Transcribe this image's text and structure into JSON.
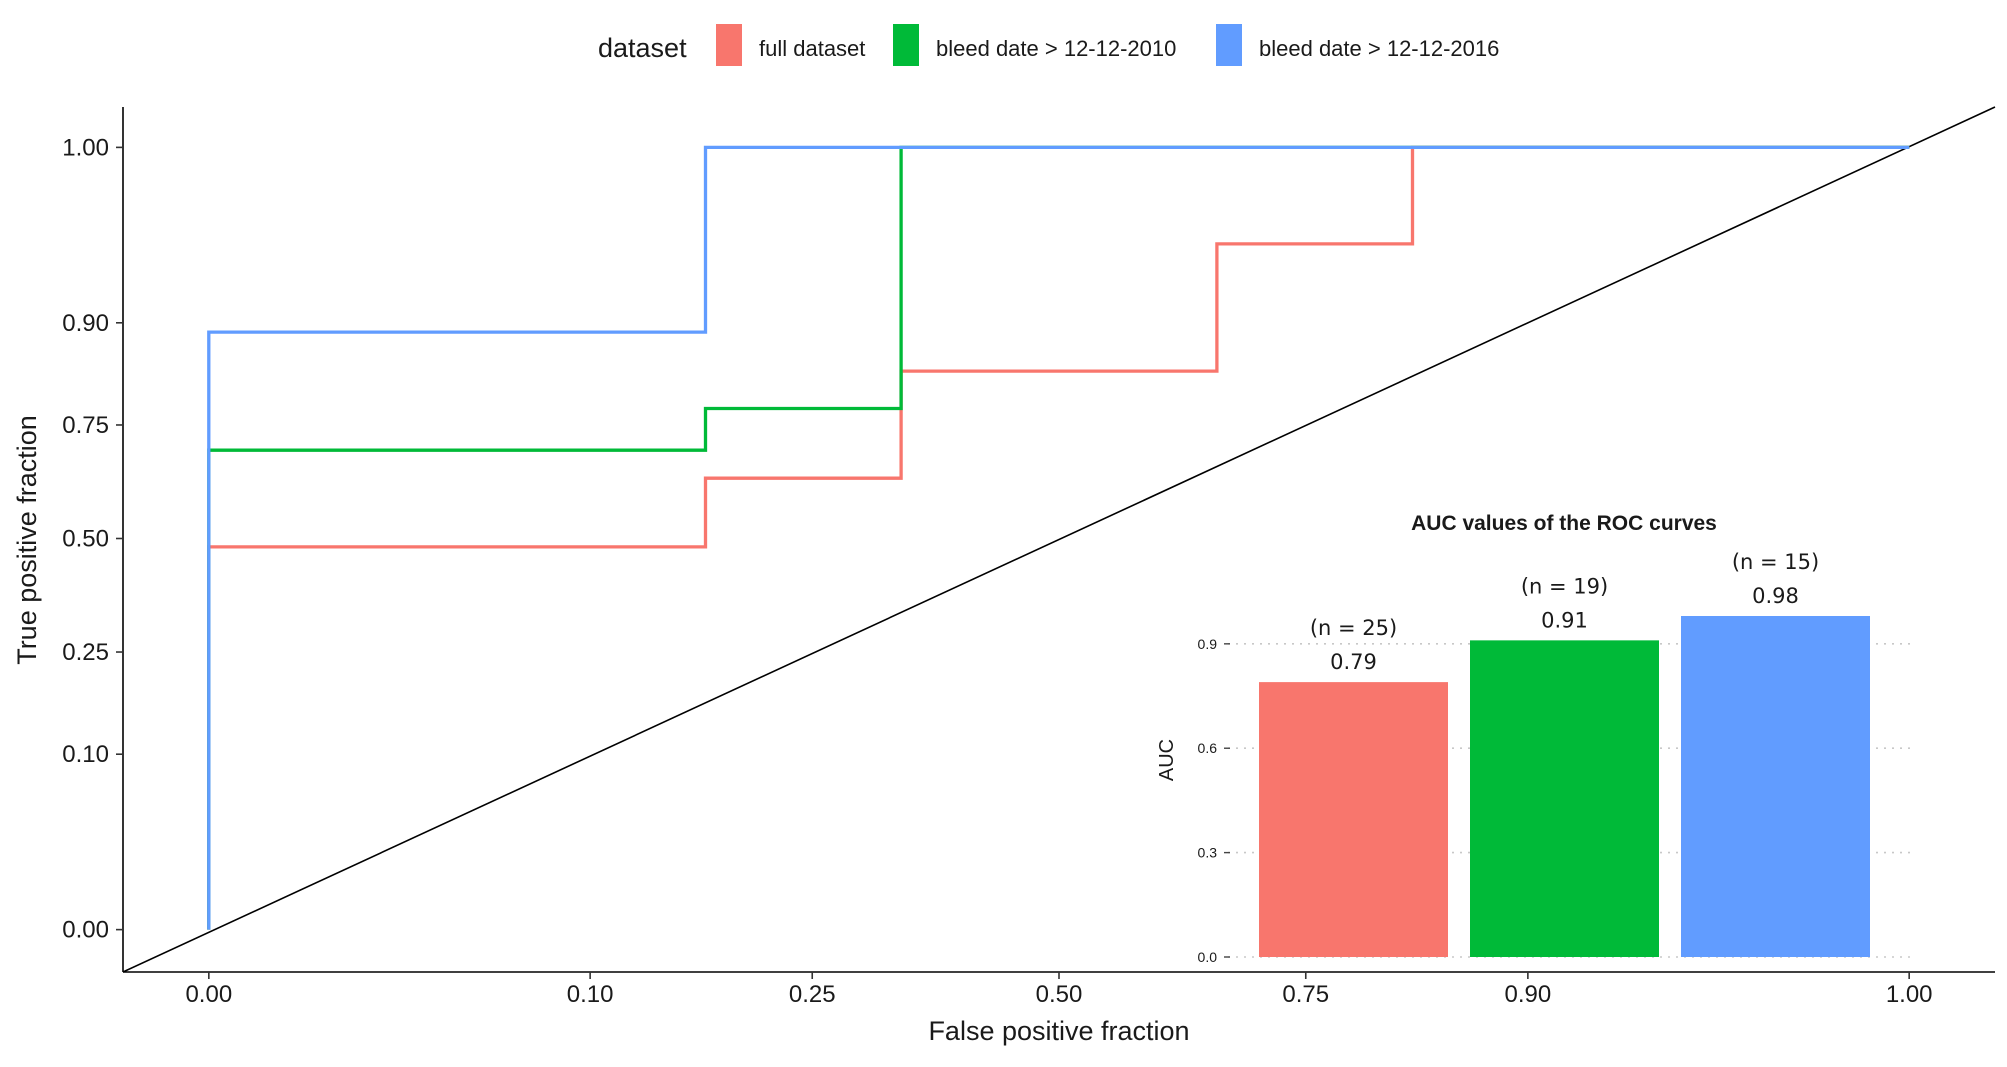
{
  "legend": {
    "title": "dataset",
    "items": [
      {
        "label": "full dataset",
        "color": "#F8766D"
      },
      {
        "label": "bleed date > 12-12-2010",
        "color": "#00BA38"
      },
      {
        "label": "bleed date > 12-12-2016",
        "color": "#619CFF"
      }
    ]
  },
  "chart_data": [
    {
      "type": "line",
      "xlabel": "False positive fraction",
      "ylabel": "True positive fraction",
      "xlim": [
        0,
        1
      ],
      "ylim": [
        0,
        1
      ],
      "x_ticks": [
        0.0,
        0.1,
        0.25,
        0.5,
        0.75,
        0.9,
        1.0
      ],
      "x_tick_labels": [
        "0.00",
        "0.10",
        "0.25",
        "0.50",
        "0.75",
        "0.90",
        "1.00"
      ],
      "y_ticks": [
        0.0,
        0.1,
        0.25,
        0.5,
        0.75,
        0.9,
        1.0
      ],
      "y_tick_labels": [
        "0.00",
        "0.10",
        "0.25",
        "0.50",
        "0.75",
        "0.90",
        "1.00"
      ],
      "axis_transform": "probit",
      "grid": false,
      "legend_position": "top",
      "reference_line": "diagonal",
      "series": [
        {
          "name": "full dataset",
          "color": "#F8766D",
          "points": [
            [
              0,
              0
            ],
            [
              0,
              0.48
            ],
            [
              0.167,
              0.48
            ],
            [
              0.167,
              0.64
            ],
            [
              0.333,
              0.64
            ],
            [
              0.333,
              0.84
            ],
            [
              0.667,
              0.84
            ],
            [
              0.667,
              0.96
            ],
            [
              0.833,
              0.96
            ],
            [
              0.833,
              1.0
            ],
            [
              1.0,
              1.0
            ]
          ]
        },
        {
          "name": "bleed date > 12-12-2010",
          "color": "#00BA38",
          "points": [
            [
              0,
              0
            ],
            [
              0,
              0.7
            ],
            [
              0.167,
              0.7
            ],
            [
              0.167,
              0.78
            ],
            [
              0.333,
              0.78
            ],
            [
              0.333,
              1.0
            ],
            [
              1.0,
              1.0
            ]
          ]
        },
        {
          "name": "bleed date > 12-12-2016",
          "color": "#619CFF",
          "points": [
            [
              0,
              0
            ],
            [
              0,
              0.89
            ],
            [
              0.167,
              0.89
            ],
            [
              0.167,
              1.0
            ],
            [
              1.0,
              1.0
            ]
          ]
        }
      ]
    },
    {
      "type": "bar",
      "title": "AUC values of the ROC curves",
      "ylabel": "AUC",
      "ylim": [
        0,
        0.98
      ],
      "y_ticks": [
        0.0,
        0.3,
        0.6,
        0.9
      ],
      "y_tick_labels": [
        "0.0",
        "0.3",
        "0.6",
        "0.9"
      ],
      "grid": "horizontal dotted",
      "categories": [
        "full dataset",
        "bleed date > 12-12-2010",
        "bleed date > 12-12-2016"
      ],
      "values": [
        0.79,
        0.91,
        0.98
      ],
      "value_labels": [
        "0.79",
        "0.91",
        "0.98"
      ],
      "count_labels": [
        "(n = 25)",
        "(n = 19)",
        "(n = 15)"
      ],
      "colors": [
        "#F8766D",
        "#00BA38",
        "#619CFF"
      ]
    }
  ]
}
